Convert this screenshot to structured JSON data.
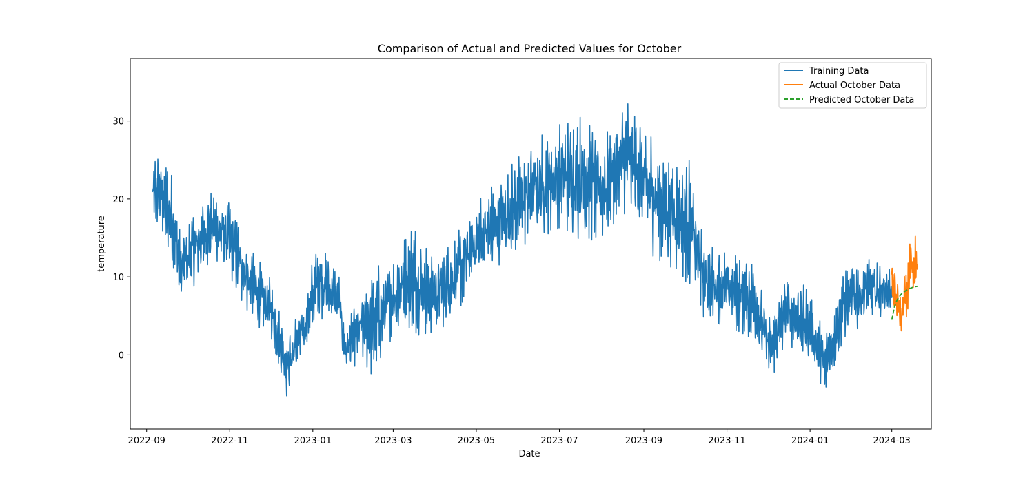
{
  "chart_data": {
    "type": "line",
    "title": "Comparison of Actual and Predicted Values for October",
    "xlabel": "Date",
    "ylabel": "temperature",
    "xlim": [
      "2022-08-20",
      "2024-03-30"
    ],
    "ylim": [
      -9.5,
      38.0
    ],
    "x_ticks": [
      "2022-09-01",
      "2022-11-01",
      "2023-01-01",
      "2023-03-01",
      "2023-05-01",
      "2023-07-01",
      "2023-09-01",
      "2023-11-01",
      "2024-01-01",
      "2024-03-01"
    ],
    "x_tick_labels": [
      "2022-09",
      "2022-11",
      "2023-01",
      "2023-03",
      "2023-05",
      "2023-07",
      "2023-09",
      "2023-11",
      "2024-01",
      "2024-03"
    ],
    "y_ticks": [
      0,
      10,
      20,
      30
    ],
    "legend_position": "top-right",
    "grid": false,
    "series": [
      {
        "name": "Training Data",
        "color": "#1f77b4",
        "style": "solid",
        "x_start": "2022-09-05",
        "x_end": "2024-03-01",
        "envelope": [
          {
            "date": "2022-09-05",
            "low": 13,
            "high": 27
          },
          {
            "date": "2022-09-10",
            "low": 14,
            "high": 28.5
          },
          {
            "date": "2022-09-20",
            "low": 10,
            "high": 25
          },
          {
            "date": "2022-09-26",
            "low": 4.5,
            "high": 17
          },
          {
            "date": "2022-10-05",
            "low": 7,
            "high": 20
          },
          {
            "date": "2022-10-20",
            "low": 10,
            "high": 23.5
          },
          {
            "date": "2022-11-01",
            "low": 8,
            "high": 21
          },
          {
            "date": "2022-11-15",
            "low": 3,
            "high": 16
          },
          {
            "date": "2022-12-01",
            "low": 1,
            "high": 11
          },
          {
            "date": "2022-12-13",
            "low": -7,
            "high": 4
          },
          {
            "date": "2022-12-25",
            "low": -3,
            "high": 9
          },
          {
            "date": "2023-01-05",
            "low": 3,
            "high": 17
          },
          {
            "date": "2023-01-20",
            "low": 2,
            "high": 12
          },
          {
            "date": "2023-01-25",
            "low": -4,
            "high": 5
          },
          {
            "date": "2023-02-05",
            "low": -2,
            "high": 9
          },
          {
            "date": "2023-02-15",
            "low": -6,
            "high": 14
          },
          {
            "date": "2023-03-01",
            "low": 1,
            "high": 14
          },
          {
            "date": "2023-03-15",
            "low": 0,
            "high": 20
          },
          {
            "date": "2023-04-01",
            "low": 1,
            "high": 14
          },
          {
            "date": "2023-04-15",
            "low": 3,
            "high": 17
          },
          {
            "date": "2023-05-01",
            "low": 7,
            "high": 22
          },
          {
            "date": "2023-05-20",
            "low": 10,
            "high": 25
          },
          {
            "date": "2023-06-10",
            "low": 12,
            "high": 30
          },
          {
            "date": "2023-07-01",
            "low": 14,
            "high": 32
          },
          {
            "date": "2023-07-15",
            "low": 12,
            "high": 34
          },
          {
            "date": "2023-08-01",
            "low": 12,
            "high": 30
          },
          {
            "date": "2023-08-20",
            "low": 16,
            "high": 35.5
          },
          {
            "date": "2023-09-05",
            "low": 10,
            "high": 32
          },
          {
            "date": "2023-09-20",
            "low": 9,
            "high": 28
          },
          {
            "date": "2023-10-05",
            "low": 6,
            "high": 28
          },
          {
            "date": "2023-10-15",
            "low": 3,
            "high": 16
          },
          {
            "date": "2023-11-01",
            "low": 2,
            "high": 15
          },
          {
            "date": "2023-11-20",
            "low": 0,
            "high": 14
          },
          {
            "date": "2023-12-03",
            "low": -5,
            "high": 6
          },
          {
            "date": "2023-12-15",
            "low": 0,
            "high": 12
          },
          {
            "date": "2024-01-01",
            "low": -3,
            "high": 10
          },
          {
            "date": "2024-01-12",
            "low": -7,
            "high": 4
          },
          {
            "date": "2024-01-25",
            "low": 0,
            "high": 13
          },
          {
            "date": "2024-02-10",
            "low": 2,
            "high": 14
          },
          {
            "date": "2024-03-01",
            "low": 5,
            "high": 12
          }
        ]
      },
      {
        "name": "Actual October Data",
        "color": "#ff7f0e",
        "style": "solid",
        "x_start": "2024-03-01",
        "x_end": "2024-03-20",
        "envelope": [
          {
            "date": "2024-03-01",
            "low": 3,
            "high": 14
          },
          {
            "date": "2024-03-05",
            "low": 4,
            "high": 10
          },
          {
            "date": "2024-03-08",
            "low": 0,
            "high": 9
          },
          {
            "date": "2024-03-12",
            "low": 3,
            "high": 14
          },
          {
            "date": "2024-03-15",
            "low": 5,
            "high": 18
          },
          {
            "date": "2024-03-20",
            "low": 7,
            "high": 16.5
          }
        ]
      },
      {
        "name": "Predicted October Data",
        "color": "#2ca02c",
        "style": "dashed",
        "points": [
          {
            "date": "2024-03-01",
            "value": 4.5
          },
          {
            "date": "2024-03-03",
            "value": 6.2
          },
          {
            "date": "2024-03-05",
            "value": 7.1
          },
          {
            "date": "2024-03-08",
            "value": 7.8
          },
          {
            "date": "2024-03-11",
            "value": 8.2
          },
          {
            "date": "2024-03-14",
            "value": 8.5
          },
          {
            "date": "2024-03-17",
            "value": 8.7
          },
          {
            "date": "2024-03-20",
            "value": 8.8
          }
        ]
      }
    ]
  }
}
